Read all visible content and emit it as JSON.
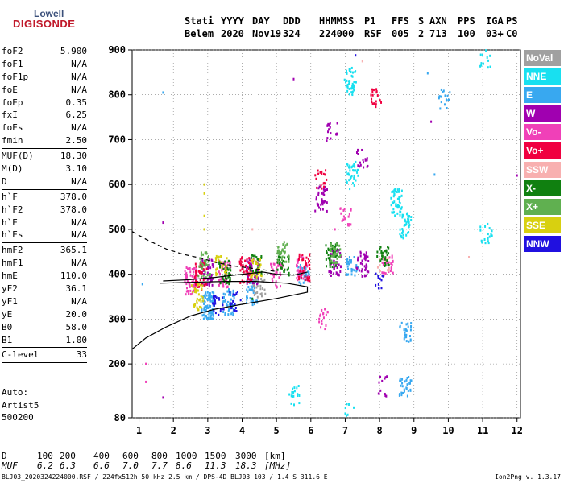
{
  "logo": {
    "line1": "Lowell",
    "line2": "DIGISONDE"
  },
  "header": {
    "row1": [
      "Stati",
      "YYYY",
      "DAY",
      "DDD",
      "HHMMSS",
      "P1",
      "FFS",
      "S",
      "AXN",
      "PPS",
      "IGA",
      "PS"
    ],
    "row2": [
      "Belem",
      "2020",
      "Nov19",
      "324",
      "224000",
      "RSF",
      "005",
      "2",
      "713",
      "100",
      "03+",
      "C0"
    ]
  },
  "params": {
    "foF2": "5.900",
    "foF1": "N/A",
    "foF1p": "N/A",
    "foE": "N/A",
    "foEp": "0.35",
    "fxI": "6.25",
    "foEs": "N/A",
    "fmin": "2.50",
    "MUFD": "18.30",
    "MD": "3.10",
    "D": "N/A",
    "hF": "378.0",
    "hF2": "378.0",
    "hE": "N/A",
    "hEs": "N/A",
    "hmF2": "365.1",
    "hmF1": "N/A",
    "hmE": "110.0",
    "yF2": "36.1",
    "yF1": "N/A",
    "yE": "20.0",
    "B0": "58.0",
    "B1": "1.00",
    "Clevel": "33"
  },
  "param_labels": {
    "foF2": "foF2",
    "foF1": "foF1",
    "foF1p": "foF1p",
    "foE": "foE",
    "foEp": "foEp",
    "fxI": "fxI",
    "foEs": "foEs",
    "fmin": "fmin",
    "MUFD": "MUF(D)",
    "MD": "M(D)",
    "D": "D",
    "hF": "h`F",
    "hF2": "h`F2",
    "hE": "h`E",
    "hEs": "h`Es",
    "hmF2": "hmF2",
    "hmF1": "hmF1",
    "hmE": "hmE",
    "yF2": "yF2",
    "yF1": "yF1",
    "yE": "yE",
    "B0": "B0",
    "B1": "B1",
    "Clevel": "C-level"
  },
  "auto": {
    "line1": "Auto:",
    "line2": "Artist5",
    "line3": "500200"
  },
  "legend": [
    {
      "label": "NoVal",
      "color": "#a0a0a0"
    },
    {
      "label": "NNE",
      "color": "#18e0f0"
    },
    {
      "label": "E",
      "color": "#38a8f0"
    },
    {
      "label": "W",
      "color": "#a000b0"
    },
    {
      "label": "Vo-",
      "color": "#f040b8"
    },
    {
      "label": "Vo+",
      "color": "#f00040"
    },
    {
      "label": "SSW",
      "color": "#f8b0b0"
    },
    {
      "label": "X-",
      "color": "#108010"
    },
    {
      "label": "X+",
      "color": "#60b050"
    },
    {
      "label": "SSE",
      "color": "#d8d010"
    },
    {
      "label": "NNW",
      "color": "#2010e0"
    }
  ],
  "footer": {
    "D_label": "D",
    "D_values": [
      "100",
      "200",
      "400",
      "600",
      "800",
      "1000",
      "1500",
      "3000"
    ],
    "D_unit": "[km]",
    "MUF_label": "MUF",
    "MUF_values": [
      "6.2",
      "6.3",
      "6.6",
      "7.0",
      "7.7",
      "8.6",
      "11.3",
      "18.3"
    ],
    "MUF_unit": "[MHz]",
    "file_info": "BLJ03_2020324224000.RSF / 224fx512h 50 kHz 2.5 km / DPS-4D BLJ03 103 / 1.4 S 311.6 E",
    "version": "Ion2Png v. 1.3.17"
  },
  "chart_data": {
    "type": "scatter",
    "title": "",
    "xlabel": "",
    "ylabel": "",
    "xlim": [
      0.8,
      12.1
    ],
    "ylim": [
      80,
      900
    ],
    "xticks": [
      1,
      2,
      3,
      4,
      5,
      6,
      7,
      8,
      9,
      10,
      11,
      12
    ],
    "yticks": [
      80,
      200,
      300,
      400,
      500,
      600,
      700,
      800,
      900
    ],
    "grid": "dotted",
    "profile_curve": [
      [
        0.8,
        233
      ],
      [
        1.2,
        258
      ],
      [
        1.8,
        283
      ],
      [
        2.5,
        307
      ],
      [
        3.2,
        322
      ],
      [
        4.0,
        333
      ],
      [
        5.0,
        346
      ],
      [
        5.9,
        360
      ],
      [
        5.9,
        372
      ],
      [
        5.3,
        380
      ],
      [
        4.4,
        384
      ],
      [
        3.5,
        384
      ],
      [
        2.5,
        382
      ],
      [
        1.6,
        380
      ]
    ],
    "trace_curve": [
      [
        1.7,
        385
      ],
      [
        2.5,
        388
      ],
      [
        3.2,
        393
      ],
      [
        4.0,
        400
      ],
      [
        4.6,
        405
      ],
      [
        5.0,
        400
      ],
      [
        5.5,
        398
      ],
      [
        5.9,
        405
      ]
    ],
    "extrapolated_curve": [
      [
        0.8,
        495
      ],
      [
        1.2,
        478
      ],
      [
        1.8,
        456
      ],
      [
        2.3,
        444
      ],
      [
        2.8,
        436
      ],
      [
        3.3,
        425
      ],
      [
        3.8,
        418
      ],
      [
        4.2,
        414
      ],
      [
        4.6,
        410
      ],
      [
        5.0,
        406
      ]
    ],
    "series": [
      {
        "name": "NNE",
        "color": "#18e0f0",
        "clusters": [
          [
            7.15,
            830,
            7
          ],
          [
            7.2,
            620,
            6
          ],
          [
            8.5,
            560,
            8
          ],
          [
            8.75,
            510,
            6
          ],
          [
            11.1,
            490,
            3
          ],
          [
            11.1,
            880,
            2
          ],
          [
            7.1,
            90,
            2
          ],
          [
            5.5,
            130,
            3
          ]
        ],
        "points": []
      },
      {
        "name": "E",
        "color": "#38a8f0",
        "clusters": [
          [
            3.0,
            330,
            14
          ],
          [
            3.6,
            338,
            8
          ],
          [
            4.3,
            360,
            6
          ],
          [
            7.2,
            420,
            5
          ],
          [
            8.75,
            150,
            5
          ],
          [
            8.75,
            270,
            4
          ],
          [
            9.9,
            790,
            3
          ],
          [
            5.8,
            400,
            5
          ]
        ],
        "points": [
          [
            1.7,
            805
          ],
          [
            9.4,
            848
          ],
          [
            9.6,
            622
          ],
          [
            1.1,
            378
          ]
        ]
      },
      {
        "name": "W",
        "color": "#a000b0",
        "clusters": [
          [
            4.3,
            405,
            10
          ],
          [
            3.0,
            405,
            8
          ],
          [
            6.7,
            425,
            8
          ],
          [
            7.5,
            425,
            6
          ],
          [
            6.3,
            570,
            6
          ],
          [
            6.6,
            720,
            3
          ],
          [
            7.5,
            660,
            3
          ],
          [
            8.1,
            150,
            2
          ]
        ],
        "points": [
          [
            1.7,
            515
          ],
          [
            1.7,
            125
          ],
          [
            5.5,
            835
          ],
          [
            9.5,
            740
          ],
          [
            12.0,
            620
          ]
        ]
      },
      {
        "name": "Vo-",
        "color": "#f040b8",
        "clusters": [
          [
            2.5,
            385,
            10
          ],
          [
            3.5,
            400,
            8
          ],
          [
            5.0,
            400,
            6
          ],
          [
            5.75,
            410,
            6
          ],
          [
            8.25,
            420,
            5
          ],
          [
            7.0,
            530,
            3
          ],
          [
            6.4,
            300,
            3
          ]
        ],
        "points": [
          [
            1.2,
            160
          ],
          [
            1.2,
            200
          ],
          [
            6.7,
            500
          ]
        ]
      },
      {
        "name": "Vo+",
        "color": "#f00040",
        "clusters": [
          [
            2.8,
            395,
            8
          ],
          [
            4.1,
            410,
            7
          ],
          [
            5.8,
            415,
            6
          ],
          [
            6.3,
            610,
            3
          ],
          [
            7.9,
            790,
            3
          ]
        ],
        "points": [
          [
            7.8,
            780
          ]
        ]
      },
      {
        "name": "SSW",
        "color": "#f8b0b0",
        "clusters": [
          [
            8.1,
            420,
            3
          ]
        ],
        "points": [
          [
            7.5,
            875
          ],
          [
            10.6,
            438
          ],
          [
            4.3,
            500
          ]
        ]
      },
      {
        "name": "X-",
        "color": "#108010",
        "clusters": [
          [
            3.5,
            405,
            7
          ],
          [
            6.6,
            440,
            6
          ],
          [
            8.1,
            440,
            5
          ],
          [
            5.2,
            420,
            4
          ],
          [
            4.4,
            420,
            4
          ]
        ],
        "points": [
          [
            4.3,
            345
          ]
        ]
      },
      {
        "name": "X+",
        "color": "#60b050",
        "clusters": [
          [
            2.9,
            420,
            6
          ],
          [
            5.2,
            450,
            5
          ],
          [
            6.7,
            445,
            5
          ]
        ],
        "points": []
      },
      {
        "name": "SSE",
        "color": "#d8d010",
        "clusters": [
          [
            2.7,
            350,
            6
          ],
          [
            3.4,
            420,
            4
          ],
          [
            4.4,
            410,
            4
          ]
        ],
        "points": [
          [
            2.9,
            600
          ],
          [
            2.9,
            580
          ],
          [
            2.9,
            530
          ],
          [
            2.9,
            500
          ]
        ]
      },
      {
        "name": "NNW",
        "color": "#2010e0",
        "clusters": [
          [
            3.3,
            330,
            4
          ],
          [
            3.8,
            340,
            3
          ],
          [
            8.0,
            380,
            2
          ]
        ],
        "points": [
          [
            7.3,
            888
          ]
        ]
      },
      {
        "name": "NoVal",
        "color": "#a0a0a0",
        "clusters": [
          [
            4.5,
            370,
            4
          ]
        ],
        "points": []
      }
    ]
  }
}
